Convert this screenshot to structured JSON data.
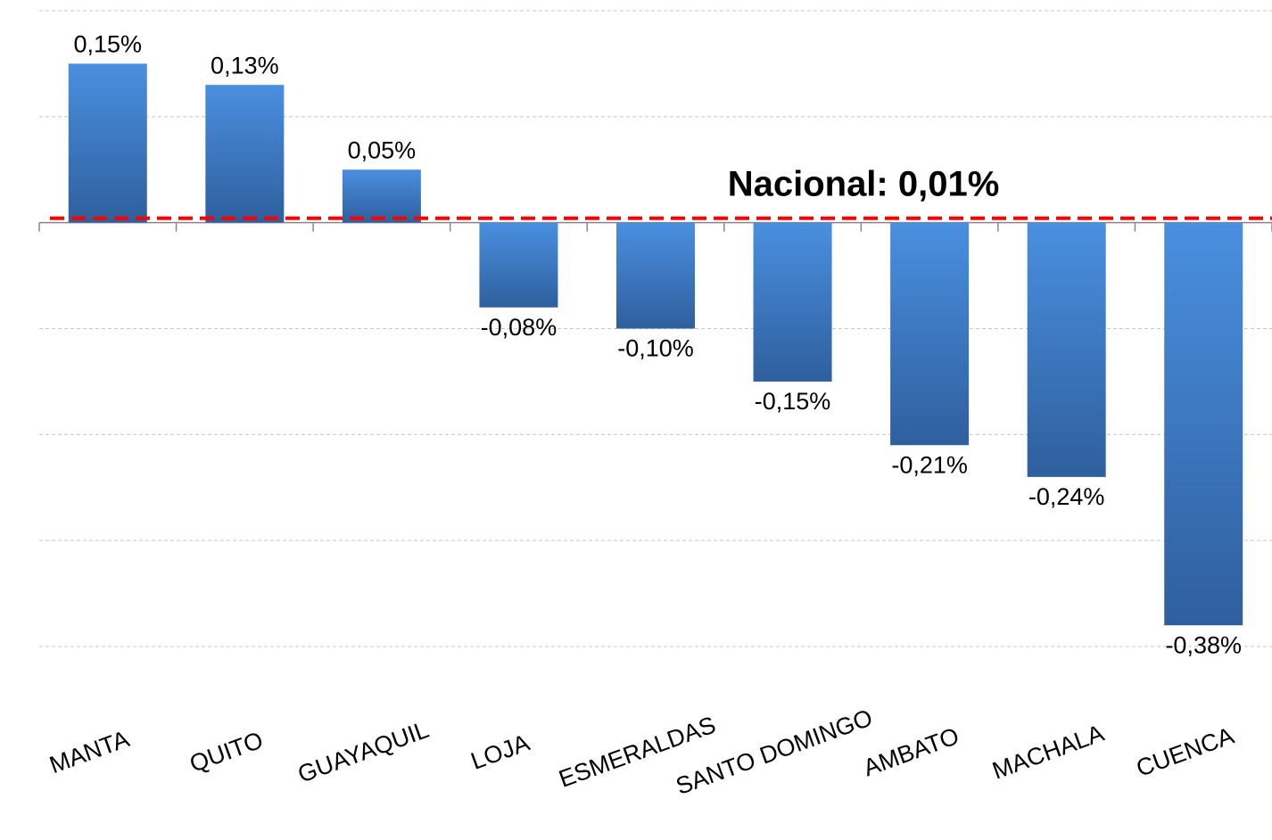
{
  "chart_data": {
    "type": "bar",
    "categories": [
      "MANTA",
      "QUITO",
      "GUAYAQUIL",
      "LOJA",
      "ESMERALDAS",
      "SANTO DOMINGO",
      "AMBATO",
      "MACHALA",
      "CUENCA"
    ],
    "values": [
      0.15,
      0.13,
      0.05,
      -0.08,
      -0.1,
      -0.15,
      -0.21,
      -0.24,
      -0.38
    ],
    "value_labels": [
      "0,15%",
      "0,13%",
      "0,05%",
      "-0,08%",
      "-0,10%",
      "-0,15%",
      "-0,21%",
      "-0,24%",
      "-0,38%"
    ],
    "color": "#3a78c8",
    "ylim": [
      -0.4,
      0.2
    ],
    "yticks": [
      -0.4,
      -0.3,
      -0.2,
      -0.1,
      0,
      0.1,
      0.2
    ],
    "grid": true,
    "reference_line": {
      "value": 0.01,
      "label": "Nacional: 0,01%",
      "color": "#ff0000"
    }
  }
}
